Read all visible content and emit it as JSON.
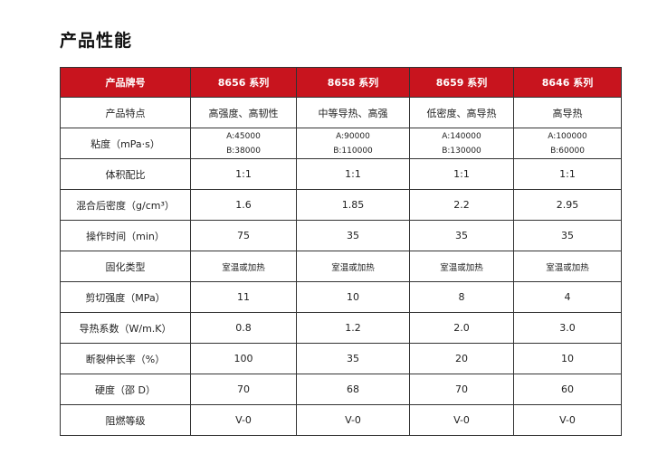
{
  "title": "产品性能",
  "table": {
    "headers": [
      "产品牌号",
      "8656 系列",
      "8658 系列",
      "8659 系列",
      "8646 系列"
    ],
    "rows": [
      {
        "label": "产品特点",
        "values": [
          "高强度、高韧性",
          "中等导热、高强",
          "低密度、高导热",
          "高导热"
        ]
      },
      {
        "label": "粘度（mPa·s）",
        "values": [
          [
            "A:45000",
            "B:38000"
          ],
          [
            "A:90000",
            "B:110000"
          ],
          [
            "A:140000",
            "B:130000"
          ],
          [
            "A:100000",
            "B:60000"
          ]
        ]
      },
      {
        "label": "体积配比",
        "values": [
          "1:1",
          "1:1",
          "1:1",
          "1:1"
        ]
      },
      {
        "label": "混合后密度（g/cm³）",
        "values": [
          "1.6",
          "1.85",
          "2.2",
          "2.95"
        ]
      },
      {
        "label": "操作时间（min）",
        "values": [
          "75",
          "35",
          "35",
          "35"
        ]
      },
      {
        "label": "固化类型",
        "values": [
          "室温或加热",
          "室温或加热",
          "室温或加热",
          "室温或加热"
        ]
      },
      {
        "label": "剪切强度（MPa）",
        "values": [
          "11",
          "10",
          "8",
          "4"
        ]
      },
      {
        "label": "导热系数（W/m.K）",
        "values": [
          "0.8",
          "1.2",
          "2.0",
          "3.0"
        ]
      },
      {
        "label": "断裂伸长率（%）",
        "values": [
          "100",
          "35",
          "20",
          "10"
        ]
      },
      {
        "label": "硬度（邵 D）",
        "values": [
          "70",
          "68",
          "70",
          "60"
        ]
      },
      {
        "label": "阻燃等级",
        "values": [
          "V-0",
          "V-0",
          "V-0",
          "V-0"
        ]
      }
    ]
  },
  "colors": {
    "header_background": "#c8141e",
    "header_text": "#ffffff",
    "border": "#333333"
  }
}
